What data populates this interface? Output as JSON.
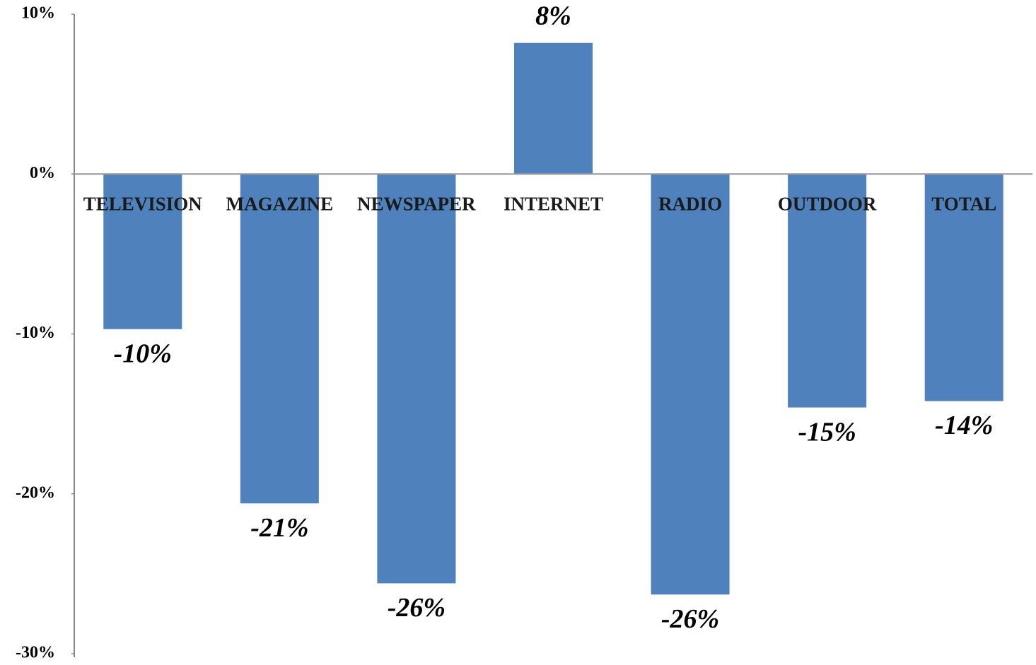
{
  "chart_data": {
    "type": "bar",
    "categories": [
      "TELEVISION",
      "MAGAZINE",
      "NEWSPAPER",
      "INTERNET",
      "RADIO",
      "OUTDOOR",
      "TOTAL"
    ],
    "values": [
      -9.7,
      -20.6,
      -25.6,
      8.2,
      -26.3,
      -14.6,
      -14.2
    ],
    "value_labels": [
      "-10%",
      "-21%",
      "-26%",
      "8%",
      "-26%",
      "-15%",
      "-14%"
    ],
    "color": "#4f81bd",
    "ylim": [
      -30,
      10
    ],
    "yticks": [
      {
        "value": -30,
        "label": "-30%"
      },
      {
        "value": -20,
        "label": "-20%"
      },
      {
        "value": -10,
        "label": "-10%"
      },
      {
        "value": 0,
        "label": "0%"
      },
      {
        "value": 10,
        "label": "10%"
      }
    ],
    "grid": false
  }
}
